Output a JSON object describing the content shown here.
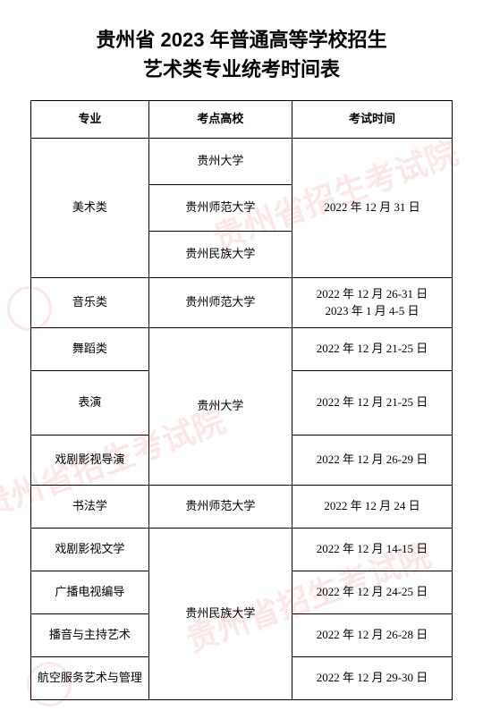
{
  "title_line1": "贵州省 2023 年普通高等学校招生",
  "title_line2": "艺术类专业统考时间表",
  "headers": {
    "major": "专业",
    "school": "考点高校",
    "time": "考试时间"
  },
  "watermark_text": "贵州省招生考试院",
  "rows": {
    "art": {
      "major": "美术类",
      "school1": "贵州大学",
      "school2": "贵州师范大学",
      "school3": "贵州民族大学",
      "time": "2022 年 12 月 31 日"
    },
    "music": {
      "major": "音乐类",
      "school": "贵州师范大学",
      "time_line1": "2022 年 12 月 26-31 日",
      "time_line2": "2023 年 1 月 4-5 日"
    },
    "dance": {
      "major": "舞蹈类",
      "time": "2022 年 12 月 21-25 日"
    },
    "perform": {
      "major": "表演",
      "school": "贵州大学",
      "time": "2022 年 12 月 21-25 日"
    },
    "drama_dir": {
      "major": "戏剧影视导演",
      "time": "2022 年 12 月 26-29 日"
    },
    "calligraphy": {
      "major": "书法学",
      "school": "贵州师范大学",
      "time": "2022 年 12 月 24 日"
    },
    "drama_lit": {
      "major": "戏剧影视文学",
      "time": "2022 年 12 月 14-15 日"
    },
    "broadcast_dir": {
      "major": "广播电视编导",
      "school": "贵州民族大学",
      "time": "2022 年 12 月 24-25 日"
    },
    "host": {
      "major": "播音与主持艺术",
      "time": "2022 年 12 月 26-28 日"
    },
    "aviation": {
      "major": "航空服务艺术与管理",
      "time": "2022 年 12 月 29-30 日"
    }
  }
}
